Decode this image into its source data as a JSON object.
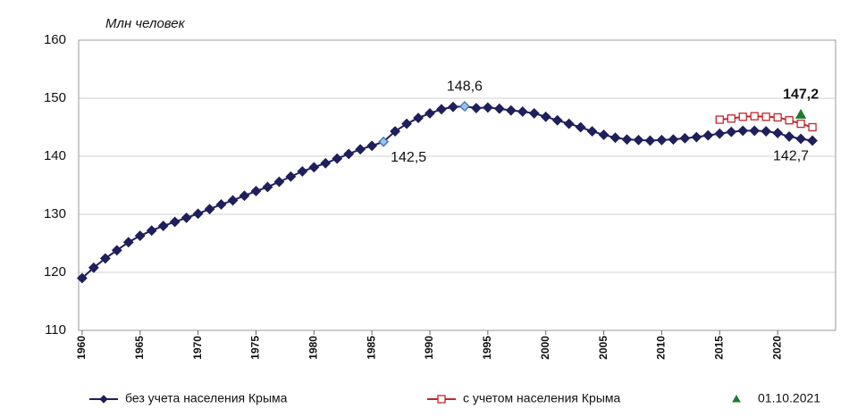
{
  "chart_data": {
    "type": "line",
    "title": "Млн человек",
    "x": [
      1960,
      1961,
      1962,
      1963,
      1964,
      1965,
      1966,
      1967,
      1968,
      1969,
      1970,
      1971,
      1972,
      1973,
      1974,
      1975,
      1976,
      1977,
      1978,
      1979,
      1980,
      1981,
      1982,
      1983,
      1984,
      1985,
      1986,
      1987,
      1988,
      1989,
      1990,
      1991,
      1992,
      1993,
      1994,
      1995,
      1996,
      1997,
      1998,
      1999,
      2000,
      2001,
      2002,
      2003,
      2004,
      2005,
      2006,
      2007,
      2008,
      2009,
      2010,
      2011,
      2012,
      2013,
      2014,
      2015,
      2016,
      2017,
      2018,
      2019,
      2020,
      2021,
      2022,
      2023
    ],
    "series": [
      {
        "name": "без учета населения Крыма",
        "color": "#1f1f5c",
        "marker": "diamond",
        "filled": true,
        "hollow_x": [
          1986,
          1993
        ],
        "hollow_color": "#9cc3ea",
        "values": [
          119.0,
          120.8,
          122.4,
          123.8,
          125.2,
          126.3,
          127.2,
          128.0,
          128.7,
          129.4,
          130.1,
          130.9,
          131.7,
          132.4,
          133.2,
          134.0,
          134.7,
          135.6,
          136.5,
          137.4,
          138.1,
          138.8,
          139.6,
          140.4,
          141.2,
          141.8,
          142.5,
          144.3,
          145.6,
          146.6,
          147.4,
          148.1,
          148.5,
          148.6,
          148.3,
          148.4,
          148.2,
          147.9,
          147.7,
          147.4,
          146.8,
          146.2,
          145.6,
          145.0,
          144.3,
          143.7,
          143.2,
          142.9,
          142.8,
          142.7,
          142.8,
          142.9,
          143.1,
          143.3,
          143.6,
          143.9,
          144.2,
          144.4,
          144.4,
          144.3,
          144.0,
          143.4,
          143.0,
          142.7
        ],
        "value_labels": [
          null,
          null,
          null,
          null,
          null,
          null,
          null,
          null,
          null,
          null,
          null,
          null,
          null,
          null,
          null,
          null,
          null,
          null,
          null,
          null,
          null,
          null,
          null,
          null,
          null,
          null,
          "142,5",
          null,
          null,
          null,
          null,
          null,
          null,
          "148,6",
          null,
          null,
          null,
          null,
          null,
          null,
          null,
          null,
          null,
          null,
          null,
          null,
          null,
          null,
          null,
          null,
          null,
          null,
          null,
          null,
          null,
          null,
          null,
          null,
          null,
          null,
          null,
          null,
          null,
          "142,7"
        ]
      },
      {
        "name": "с учетом населения Крыма",
        "color": "#c0272d",
        "marker": "square",
        "filled": false,
        "values": [
          null,
          null,
          null,
          null,
          null,
          null,
          null,
          null,
          null,
          null,
          null,
          null,
          null,
          null,
          null,
          null,
          null,
          null,
          null,
          null,
          null,
          null,
          null,
          null,
          null,
          null,
          null,
          null,
          null,
          null,
          null,
          null,
          null,
          null,
          null,
          null,
          null,
          null,
          null,
          null,
          null,
          null,
          null,
          null,
          null,
          null,
          null,
          null,
          null,
          null,
          null,
          null,
          null,
          null,
          null,
          146.3,
          146.5,
          146.8,
          146.9,
          146.8,
          146.7,
          146.2,
          145.6,
          145.0
        ]
      },
      {
        "name": "01.10.2021",
        "color": "#1e7b2e",
        "marker": "triangle",
        "filled": true,
        "line": false,
        "values": [
          null,
          null,
          null,
          null,
          null,
          null,
          null,
          null,
          null,
          null,
          null,
          null,
          null,
          null,
          null,
          null,
          null,
          null,
          null,
          null,
          null,
          null,
          null,
          null,
          null,
          null,
          null,
          null,
          null,
          null,
          null,
          null,
          null,
          null,
          null,
          null,
          null,
          null,
          null,
          null,
          null,
          null,
          null,
          null,
          null,
          null,
          null,
          null,
          null,
          null,
          null,
          null,
          null,
          null,
          null,
          null,
          null,
          null,
          null,
          null,
          null,
          null,
          147.2,
          null
        ],
        "value_labels": [
          null,
          null,
          null,
          null,
          null,
          null,
          null,
          null,
          null,
          null,
          null,
          null,
          null,
          null,
          null,
          null,
          null,
          null,
          null,
          null,
          null,
          null,
          null,
          null,
          null,
          null,
          null,
          null,
          null,
          null,
          null,
          null,
          null,
          null,
          null,
          null,
          null,
          null,
          null,
          null,
          null,
          null,
          null,
          null,
          null,
          null,
          null,
          null,
          null,
          null,
          null,
          null,
          null,
          null,
          null,
          null,
          null,
          null,
          null,
          null,
          null,
          null,
          "147,2",
          null
        ]
      }
    ],
    "xlim": [
      1959.7,
      2025
    ],
    "xticks": [
      1960,
      1965,
      1970,
      1975,
      1980,
      1985,
      1990,
      1995,
      2000,
      2005,
      2010,
      2015,
      2020
    ],
    "ylim": [
      110,
      160
    ],
    "yticks": [
      110,
      120,
      130,
      140,
      150,
      160
    ],
    "grid": true,
    "legend": "bottom"
  }
}
